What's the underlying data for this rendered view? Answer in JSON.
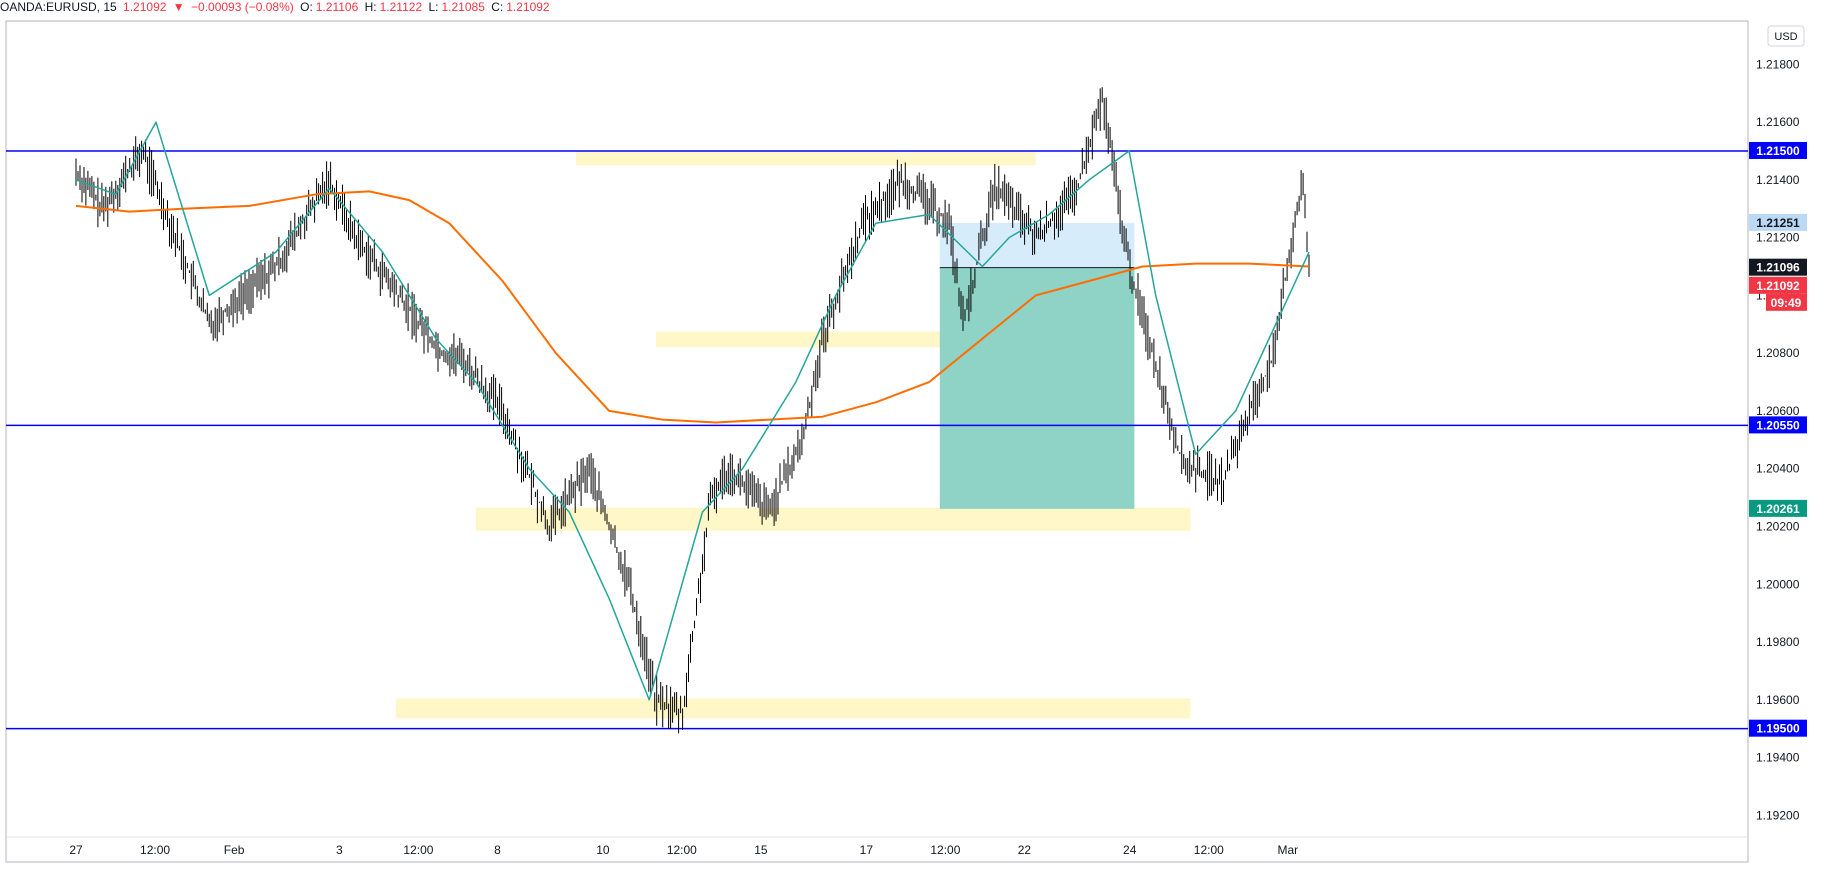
{
  "header": {
    "symbol": "OANDA:EURUSD, 15",
    "last": "1.21092",
    "arrow": "▼",
    "change": "−0.00093 (−0.08%)",
    "o_label": "O:",
    "o_value": "1.21106",
    "h_label": "H:",
    "h_value": "1.21122",
    "l_label": "L:",
    "l_value": "1.21085",
    "c_label": "C:",
    "c_value": "1.21092"
  },
  "currency_label": "USD",
  "colors": {
    "level_line": "#0000ff",
    "zone": "#fff7c8",
    "target_box": "#8fd3c6",
    "stop_box": "#d6ecfb",
    "ema_short": "#26a69a",
    "ema_long": "#ff6d00",
    "price_bar": "#000000",
    "badge_blue": "#0000ff",
    "badge_red": "#f23645",
    "badge_green": "#089981",
    "badge_light": "#bbd9f5"
  },
  "chart_data": {
    "type": "line",
    "title": "",
    "xlabel": "",
    "ylabel": "",
    "ylim": [
      1.19125,
      1.2195
    ],
    "grid": false,
    "y_ticks": [
      "1.21800",
      "1.21600",
      "1.21400",
      "1.21200",
      "1.21000",
      "1.20800",
      "1.20600",
      "1.20400",
      "1.20200",
      "1.20000",
      "1.19800",
      "1.19600",
      "1.19400",
      "1.19200"
    ],
    "x_ticks": [
      "27",
      "12:00",
      "Feb",
      "3",
      "12:00",
      "8",
      "10",
      "12:00",
      "15",
      "17",
      "12:00",
      "22",
      "24",
      "12:00",
      "Mar"
    ],
    "x_tick_positions": [
      0.0,
      0.0593,
      0.1186,
      0.1976,
      0.2569,
      0.3162,
      0.3953,
      0.4545,
      0.5138,
      0.5929,
      0.6522,
      0.7115,
      0.7905,
      0.8498,
      0.9091
    ],
    "price_series": {
      "name": "",
      "x": [
        0.0,
        0.02,
        0.05,
        0.1,
        0.15,
        0.19,
        0.21,
        0.25,
        0.275,
        0.29,
        0.32,
        0.355,
        0.385,
        0.415,
        0.435,
        0.455,
        0.4765,
        0.49,
        0.52,
        0.545,
        0.56,
        0.59,
        0.62,
        0.655,
        0.666,
        0.68,
        0.69,
        0.72,
        0.75,
        0.77,
        0.79,
        0.805,
        0.83,
        0.86,
        0.885,
        0.9,
        0.905,
        0.92,
        0.925
      ],
      "y": [
        1.2143,
        1.213,
        1.215,
        1.209,
        1.211,
        1.214,
        1.212,
        1.2095,
        1.208,
        1.2078,
        1.206,
        1.202,
        1.204,
        1.2,
        1.196,
        1.1955,
        1.203,
        1.204,
        1.2025,
        1.205,
        1.2085,
        1.2125,
        1.214,
        1.2125,
        1.209,
        1.212,
        1.2138,
        1.212,
        1.2135,
        1.2168,
        1.211,
        1.2085,
        1.2042,
        1.2035,
        1.2065,
        1.208,
        1.21,
        1.214,
        1.211
      ]
    },
    "ema_short": {
      "name": "",
      "x": [
        0.0,
        0.03,
        0.06,
        0.1,
        0.15,
        0.19,
        0.23,
        0.27,
        0.3,
        0.34,
        0.37,
        0.4,
        0.43,
        0.47,
        0.5,
        0.54,
        0.57,
        0.6,
        0.64,
        0.68,
        0.7,
        0.73,
        0.76,
        0.79,
        0.81,
        0.84,
        0.87,
        0.9,
        0.925
      ],
      "y": [
        1.214,
        1.2135,
        1.216,
        1.21,
        1.2115,
        1.2137,
        1.2115,
        1.2085,
        1.207,
        1.204,
        1.2025,
        1.1995,
        1.196,
        1.2025,
        1.204,
        1.207,
        1.21,
        1.2125,
        1.2128,
        1.211,
        1.212,
        1.2128,
        1.214,
        1.215,
        1.21,
        1.2045,
        1.206,
        1.209,
        1.2115
      ]
    },
    "ema_long": {
      "name": "",
      "x": [
        0.0,
        0.04,
        0.08,
        0.13,
        0.18,
        0.22,
        0.25,
        0.28,
        0.32,
        0.36,
        0.4,
        0.44,
        0.48,
        0.52,
        0.56,
        0.6,
        0.64,
        0.68,
        0.72,
        0.76,
        0.8,
        0.84,
        0.88,
        0.925
      ],
      "y": [
        1.2131,
        1.2129,
        1.213,
        1.2131,
        1.2135,
        1.2136,
        1.2133,
        1.2125,
        1.2105,
        1.208,
        1.206,
        1.2057,
        1.2056,
        1.2057,
        1.2058,
        1.2063,
        1.207,
        1.2085,
        1.21,
        1.2105,
        1.211,
        1.2111,
        1.2111,
        1.211
      ]
    },
    "horizontal_levels": [
      {
        "price": 1.215,
        "label": "1.21500"
      },
      {
        "price": 1.2055,
        "label": "1.20550"
      },
      {
        "price": 1.195,
        "label": "1.19500"
      }
    ],
    "zones": [
      {
        "x0": 0.375,
        "x1": 0.72,
        "y0": 1.2145,
        "y1": 1.215
      },
      {
        "x0": 0.435,
        "x1": 0.714,
        "y0": 1.2082,
        "y1": 1.20875
      },
      {
        "x0": 0.3,
        "x1": 0.836,
        "y0": 1.20185,
        "y1": 1.20265
      },
      {
        "x0": 0.24,
        "x1": 0.836,
        "y0": 1.19535,
        "y1": 1.19605
      }
    ],
    "position": {
      "x0": 0.648,
      "x1": 0.794,
      "entry": 1.21096,
      "stop": 1.21251,
      "target": 1.20261
    },
    "price_badges": [
      {
        "price": 1.21251,
        "label": "1.21251",
        "style": "light"
      },
      {
        "price": 1.21096,
        "label": "1.21096",
        "style": "black"
      },
      {
        "price": 1.21092,
        "label": "1.21092",
        "style": "red",
        "sub": "09:49"
      },
      {
        "price": 1.20261,
        "label": "1.20261",
        "style": "green"
      }
    ]
  }
}
